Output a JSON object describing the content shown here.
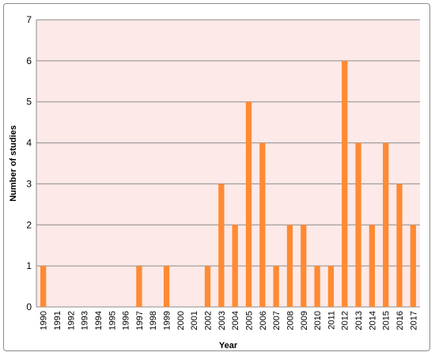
{
  "chart_data": {
    "type": "bar",
    "xlabel": "Year",
    "ylabel": "Number of studies",
    "ylim": [
      0,
      7
    ],
    "y_ticks": [
      "0",
      "1",
      "2",
      "3",
      "4",
      "5",
      "6",
      "7"
    ],
    "grid": true,
    "legend": "none",
    "categories": [
      "1990",
      "1991",
      "1992",
      "1993",
      "1994",
      "1995",
      "1996",
      "1997",
      "1998",
      "1999",
      "2000",
      "2001",
      "2002",
      "2003",
      "2004",
      "2005",
      "2006",
      "2007",
      "2008",
      "2009",
      "2010",
      "2011",
      "2012",
      "2013",
      "2014",
      "2015",
      "2016",
      "2017"
    ],
    "values": [
      1,
      0,
      0,
      0,
      0,
      0,
      0,
      1,
      0,
      1,
      0,
      0,
      1,
      3,
      2,
      5,
      4,
      1,
      2,
      2,
      1,
      1,
      6,
      4,
      2,
      4,
      3,
      2
    ],
    "colors": {
      "bar": "#ff8a33",
      "plot_background": "#fde9e7",
      "gridline": "#8c8c8c"
    }
  }
}
